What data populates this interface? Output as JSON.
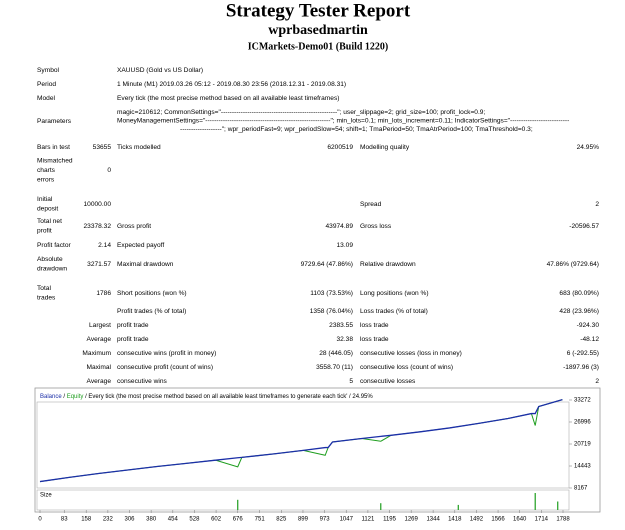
{
  "header": {
    "title": "Strategy Tester Report",
    "subtitle": "wprbasedmartin",
    "server": "ICMarkets-Demo01 (Build 1220)"
  },
  "info": [
    {
      "label": "Symbol",
      "value": "XAUUSD (Gold vs US Dollar)"
    },
    {
      "label": "Period",
      "value": "1 Minute (M1) 2019.03.26 05:12 - 2019.08.30 23:56 (2018.12.31 - 2019.08.31)"
    },
    {
      "label": "Model",
      "value": "Every tick (the most precise method based on all available least timeframes)"
    }
  ],
  "parameters": {
    "label": "Parameters",
    "lines": [
      "magic=210612; CommonSettings=\"-----------------------------------------------------\"; user_slippage=2; grid_size=100; profit_lock=0.9;",
      "MoneyManagementSettings=\"---------------------------------------------------------\"; min_lots=0.1; min_lots_increment=0.11; IndicatorSettings=\"---------------------------",
      "-------------------\"; wpr_periodFast=9; wpr_periodSlow=54; shift=1; TmaPeriod=50; TmaAtrPeriod=100; TmaThreshold=0.3;"
    ]
  },
  "stats": [
    {
      "label": [
        "Bars in test"
      ],
      "value": "53655",
      "label2": "Ticks modelled",
      "value2": "6200519",
      "label3": "Modelling quality",
      "value3": "24.95%"
    },
    {
      "label": [
        "Mismatched",
        "charts",
        "errors"
      ],
      "value": "0"
    },
    {
      "label": [
        "Initial",
        "deposit"
      ],
      "value": "10000.00",
      "label3": "Spread",
      "value3": "2"
    },
    {
      "label": [
        "Total net",
        "profit"
      ],
      "value": "23378.32",
      "label2": "Gross profit",
      "value2": "43974.89",
      "label3": "Gross loss",
      "value3": "-20596.57"
    },
    {
      "label": [
        "Profit factor"
      ],
      "value": "2.14",
      "label2": "Expected payoff",
      "value2": "13.09"
    },
    {
      "label": [
        "Absolute",
        "drawdown"
      ],
      "value": "3271.57",
      "label2": "Maximal drawdown",
      "value2": "9729.64 (47.86%)",
      "label3": "Relative drawdown",
      "value3": "47.86% (9729.64)"
    },
    {
      "label": [
        "Total",
        "trades"
      ],
      "value": "1786",
      "label2": "Short positions (won %)",
      "value2": "1103 (73.53%)",
      "label3": "Long positions (won %)",
      "value3": "683 (80.09%)"
    },
    {
      "label2": "Profit trades (% of total)",
      "value2": "1358 (76.04%)",
      "label3": "Loss trades (% of total)",
      "value3": "428 (23.96%)"
    },
    {
      "prefix": "Largest",
      "label2": "profit trade",
      "value2": "2383.55",
      "label3": "loss trade",
      "value3": "-924.30"
    },
    {
      "prefix": "Average",
      "label2": "profit trade",
      "value2": "32.38",
      "label3": "loss trade",
      "value3": "-48.12"
    },
    {
      "prefix": "Maximum",
      "label2": "consecutive wins (profit in money)",
      "value2": "28 (446.05)",
      "label3": "consecutive losses (loss in money)",
      "value3": "6 (-292.55)"
    },
    {
      "prefix": "Maximal",
      "label2": "consecutive profit (count of wins)",
      "value2": "3558.70 (11)",
      "label3": "consecutive loss (count of wins)",
      "value3": "-1897.96 (3)"
    },
    {
      "prefix": "Average",
      "label2": "consecutive wins",
      "value2": "5",
      "label3": "consecutive losses",
      "value3": "2"
    }
  ],
  "chart_data": {
    "type": "line",
    "separator": "/",
    "description": "Every tick (the most precise method based on all available least timeframes to generate each tick'",
    "quality": "24.95%",
    "x": [
      0,
      100,
      200,
      300,
      400,
      500,
      600,
      676,
      690,
      800,
      900,
      975,
      985,
      1000,
      1100,
      1165,
      1200,
      1300,
      1400,
      1500,
      1600,
      1680,
      1693,
      1705,
      1786
    ],
    "series": [
      {
        "name": "Balance",
        "color": "#1c2fa8",
        "values": [
          10000,
          11200,
          12300,
          13300,
          14300,
          15200,
          16100,
          16800,
          16900,
          17900,
          18900,
          19700,
          19700,
          21300,
          22300,
          22900,
          23200,
          24200,
          25300,
          26600,
          28000,
          29400,
          29400,
          31400,
          33378.32
        ]
      },
      {
        "name": "Equity",
        "color": "#1e9e1e",
        "values": [
          10000,
          11200,
          12300,
          13300,
          14300,
          15200,
          16100,
          14200,
          16900,
          17900,
          18900,
          17500,
          19700,
          21300,
          22300,
          21500,
          23200,
          24200,
          25300,
          26600,
          28000,
          29400,
          26000,
          31400,
          33378.32
        ]
      }
    ],
    "xlim": [
      0,
      1788
    ],
    "ylim": [
      8167,
      33272
    ],
    "yticks": [
      8167,
      14443,
      20719,
      26996,
      33272
    ],
    "xticks": [
      0,
      83,
      158,
      232,
      306,
      380,
      454,
      528,
      602,
      676,
      751,
      825,
      899,
      973,
      1047,
      1121,
      1195,
      1269,
      1344,
      1418,
      1492,
      1566,
      1640,
      1714,
      1788
    ],
    "size": {
      "name": "Size",
      "color": "#1e9e1e",
      "x": [
        676,
        1165,
        1430,
        1693,
        1770
      ],
      "values": [
        0.6,
        0.4,
        0.3,
        1.0,
        0.5
      ]
    }
  }
}
